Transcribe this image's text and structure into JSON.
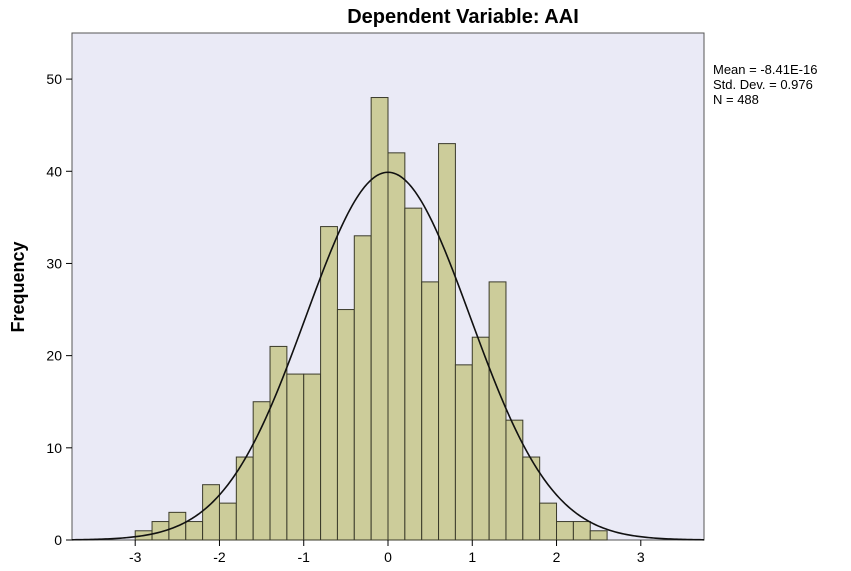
{
  "chart_data": {
    "type": "bar",
    "title": "Dependent Variable: AAI",
    "xlabel": "",
    "ylabel": "Frequency",
    "xlim": [
      -3.75,
      3.75
    ],
    "ylim": [
      0,
      55
    ],
    "x_ticks": [
      -3,
      -2,
      -1,
      0,
      1,
      2,
      3
    ],
    "y_ticks": [
      0,
      10,
      20,
      30,
      40,
      50
    ],
    "grid": false,
    "colors": {
      "bar_fill": "#cccc9a",
      "bar_stroke": "#3a3a2a",
      "plot_background": "#eaeaf6",
      "curve": "#111111"
    },
    "bins": {
      "start": -3.0,
      "width": 0.2,
      "counts": [
        1,
        2,
        3,
        2,
        6,
        4,
        9,
        15,
        21,
        18,
        18,
        34,
        25,
        33,
        48,
        42,
        36,
        28,
        43,
        19,
        22,
        28,
        13,
        9,
        4,
        2,
        2,
        1
      ]
    },
    "normal_curve": {
      "mean": 0,
      "sd": 0.976,
      "n": 488,
      "bin_width": 0.2
    },
    "stats": [
      "Mean = -8.41E-16",
      "Std. Dev. = 0.976",
      "N = 488"
    ]
  }
}
